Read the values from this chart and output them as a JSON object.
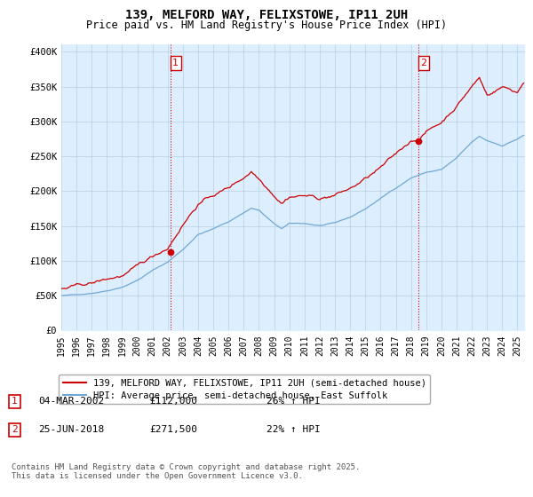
{
  "title_line1": "139, MELFORD WAY, FELIXSTOWE, IP11 2UH",
  "title_line2": "Price paid vs. HM Land Registry's House Price Index (HPI)",
  "ylabel_ticks": [
    "£0",
    "£50K",
    "£100K",
    "£150K",
    "£200K",
    "£250K",
    "£300K",
    "£350K",
    "£400K"
  ],
  "ytick_values": [
    0,
    50000,
    100000,
    150000,
    200000,
    250000,
    300000,
    350000,
    400000
  ],
  "ylim": [
    0,
    410000
  ],
  "xlim_start": 1995.0,
  "xlim_end": 2025.5,
  "xticks": [
    1995,
    1996,
    1997,
    1998,
    1999,
    2000,
    2001,
    2002,
    2003,
    2004,
    2005,
    2006,
    2007,
    2008,
    2009,
    2010,
    2011,
    2012,
    2013,
    2014,
    2015,
    2016,
    2017,
    2018,
    2019,
    2020,
    2021,
    2022,
    2023,
    2024,
    2025
  ],
  "hpi_color": "#6fa8d4",
  "price_color": "#cc0000",
  "bg_fill_color": "#ddeeff",
  "vline_color": "#cc0000",
  "vline_style": ":",
  "marker1_x": 2002.17,
  "marker1_y": 112000,
  "marker2_x": 2018.48,
  "marker2_y": 271500,
  "legend_line1": "139, MELFORD WAY, FELIXSTOWE, IP11 2UH (semi-detached house)",
  "legend_line2": "HPI: Average price, semi-detached house, East Suffolk",
  "table_row1": [
    "1",
    "04-MAR-2002",
    "£112,000",
    "26% ↑ HPI"
  ],
  "table_row2": [
    "2",
    "25-JUN-2018",
    "£271,500",
    "22% ↑ HPI"
  ],
  "footnote": "Contains HM Land Registry data © Crown copyright and database right 2025.\nThis data is licensed under the Open Government Licence v3.0.",
  "background_color": "#ffffff",
  "grid_color": "#b8cfe0"
}
